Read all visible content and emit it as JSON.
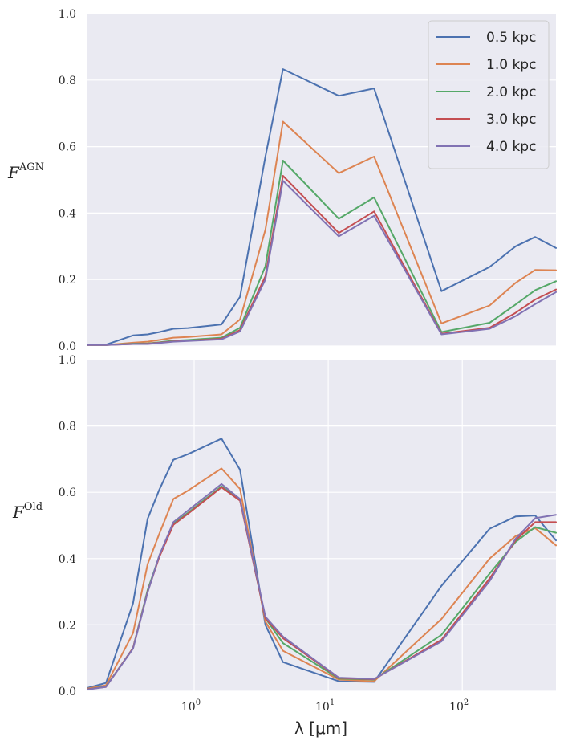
{
  "chart_data": [
    {
      "type": "line",
      "ylabel_main": "F",
      "ylabel_sup": "AGN",
      "xscale": "log",
      "xlim": [
        0.16,
        500
      ],
      "ylim": [
        0,
        1.0
      ],
      "yticks": [
        "0.0",
        "0.2",
        "0.4",
        "0.6",
        "0.8",
        "1.0"
      ],
      "grid": true,
      "legend": "top-right",
      "x": [
        0.16,
        0.22,
        0.35,
        0.45,
        0.55,
        0.7,
        0.9,
        1.6,
        2.2,
        3.4,
        4.6,
        12,
        22,
        70,
        160,
        250,
        350,
        500
      ],
      "series": [
        {
          "name": "0.5 kpc",
          "color": "#4c72b0",
          "values": [
            0.004,
            0.004,
            0.032,
            0.035,
            0.042,
            0.052,
            0.054,
            0.065,
            0.148,
            0.57,
            0.833,
            0.753,
            0.775,
            0.165,
            0.238,
            0.3,
            0.328,
            0.295
          ]
        },
        {
          "name": "1.0 kpc",
          "color": "#dd8452",
          "values": [
            0.003,
            0.003,
            0.01,
            0.013,
            0.018,
            0.025,
            0.027,
            0.035,
            0.08,
            0.35,
            0.675,
            0.52,
            0.57,
            0.068,
            0.122,
            0.19,
            0.229,
            0.228
          ]
        },
        {
          "name": "2.0 kpc",
          "color": "#55a868",
          "values": [
            0.003,
            0.003,
            0.007,
            0.008,
            0.011,
            0.016,
            0.018,
            0.025,
            0.055,
            0.24,
            0.558,
            0.383,
            0.447,
            0.042,
            0.07,
            0.125,
            0.168,
            0.195
          ]
        },
        {
          "name": "3.0 kpc",
          "color": "#c44e52",
          "values": [
            0.003,
            0.003,
            0.006,
            0.007,
            0.01,
            0.014,
            0.016,
            0.022,
            0.048,
            0.21,
            0.512,
            0.34,
            0.405,
            0.037,
            0.055,
            0.1,
            0.14,
            0.17
          ]
        },
        {
          "name": "4.0 kpc",
          "color": "#8172b3",
          "values": [
            0.003,
            0.003,
            0.006,
            0.006,
            0.009,
            0.013,
            0.015,
            0.02,
            0.044,
            0.2,
            0.497,
            0.33,
            0.392,
            0.035,
            0.052,
            0.09,
            0.126,
            0.162
          ]
        }
      ]
    },
    {
      "type": "line",
      "ylabel_main": "F",
      "ylabel_sup": "Old",
      "xlabel": "λ [μm]",
      "xscale": "log",
      "xlim": [
        0.16,
        500
      ],
      "ylim": [
        0,
        1.0
      ],
      "yticks": [
        "0.0",
        "0.2",
        "0.4",
        "0.6",
        "0.8",
        "1.0"
      ],
      "xticks": [
        {
          "value": 1,
          "base": "10",
          "exp": "0"
        },
        {
          "value": 10,
          "base": "10",
          "exp": "1"
        },
        {
          "value": 100,
          "base": "10",
          "exp": "2"
        }
      ],
      "grid": true,
      "x": [
        0.16,
        0.22,
        0.35,
        0.45,
        0.55,
        0.7,
        0.9,
        1.6,
        2.2,
        3.4,
        4.6,
        12,
        22,
        70,
        160,
        250,
        350,
        500
      ],
      "series": [
        {
          "name": "0.5 kpc",
          "color": "#4c72b0",
          "values": [
            0.01,
            0.025,
            0.265,
            0.52,
            0.608,
            0.698,
            0.715,
            0.762,
            0.668,
            0.2,
            0.088,
            0.03,
            0.028,
            0.318,
            0.49,
            0.527,
            0.53,
            0.455
          ]
        },
        {
          "name": "1.0 kpc",
          "color": "#dd8452",
          "values": [
            0.008,
            0.018,
            0.175,
            0.383,
            0.475,
            0.58,
            0.605,
            0.672,
            0.61,
            0.21,
            0.122,
            0.035,
            0.03,
            0.218,
            0.4,
            0.468,
            0.492,
            0.44
          ]
        },
        {
          "name": "2.0 kpc",
          "color": "#55a868",
          "values": [
            0.006,
            0.014,
            0.13,
            0.305,
            0.408,
            0.505,
            0.538,
            0.618,
            0.578,
            0.22,
            0.145,
            0.038,
            0.035,
            0.17,
            0.355,
            0.45,
            0.495,
            0.478
          ]
        },
        {
          "name": "3.0 kpc",
          "color": "#c44e52",
          "values": [
            0.006,
            0.013,
            0.13,
            0.3,
            0.405,
            0.502,
            0.535,
            0.615,
            0.575,
            0.22,
            0.16,
            0.04,
            0.036,
            0.155,
            0.34,
            0.455,
            0.51,
            0.51
          ]
        },
        {
          "name": "4.0 kpc",
          "color": "#8172b3",
          "values": [
            0.005,
            0.013,
            0.128,
            0.298,
            0.41,
            0.51,
            0.545,
            0.625,
            0.58,
            0.225,
            0.165,
            0.041,
            0.037,
            0.15,
            0.332,
            0.46,
            0.522,
            0.532
          ]
        }
      ]
    }
  ]
}
